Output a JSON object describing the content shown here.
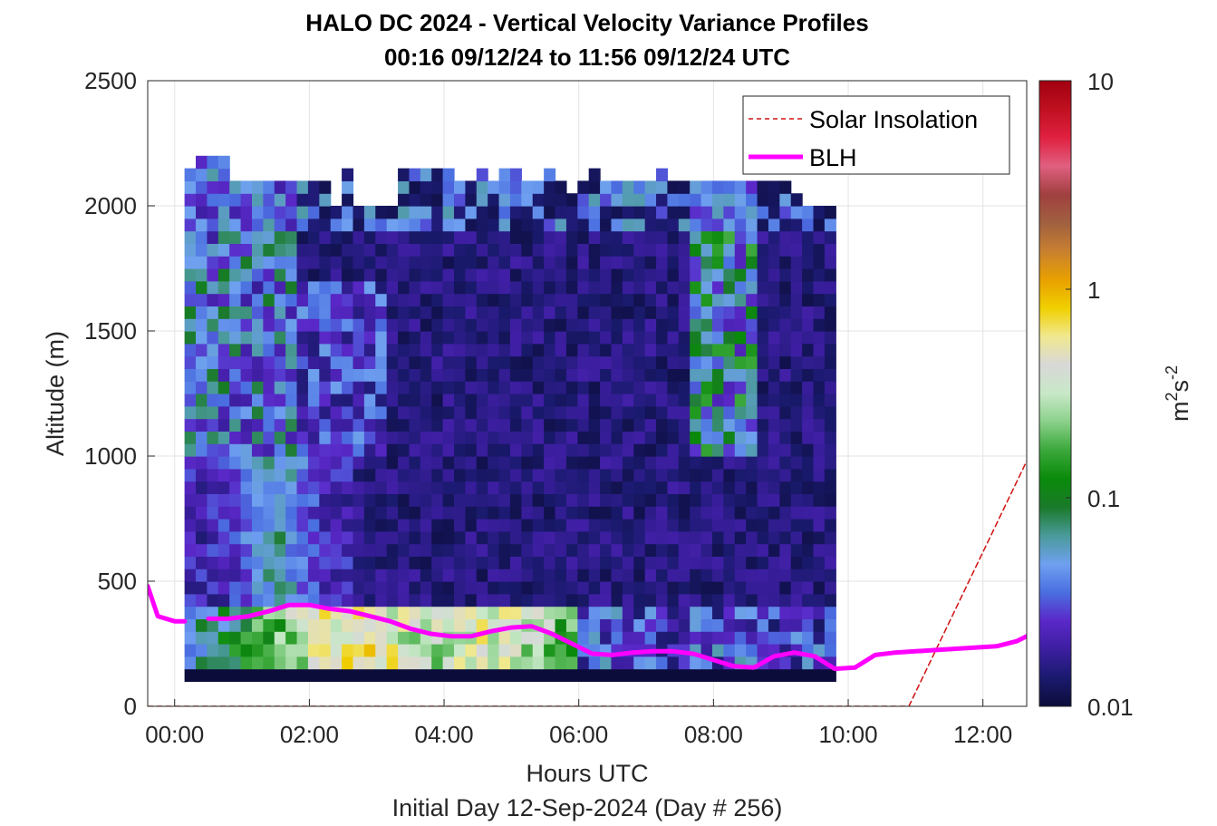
{
  "chart_data": {
    "type": "heatmap",
    "title": "HALO DC 2024 - Vertical Velocity Variance Profiles",
    "subtitle": "00:16 09/12/24 to 11:56 09/12/24  UTC",
    "xlabel": "Hours UTC",
    "footer": "Initial Day 12-Sep-2024 (Day # 256)",
    "ylabel": "Altitude (m)",
    "xlim": [
      -0.4,
      12.65
    ],
    "ylim": [
      0,
      2500
    ],
    "x_ticks": [
      0,
      2,
      4,
      6,
      8,
      10,
      12
    ],
    "x_tick_labels": [
      "00:00",
      "02:00",
      "04:00",
      "06:00",
      "08:00",
      "10:00",
      "12:00"
    ],
    "y_ticks": [
      0,
      500,
      1000,
      1500,
      2000,
      2500
    ],
    "y_tick_labels": [
      "0",
      "500",
      "1000",
      "1500",
      "2000",
      "2500"
    ],
    "grid": true,
    "legend_position": "top-right",
    "colorbar": {
      "scale": "log",
      "min": 0.01,
      "max": 10,
      "ticks": [
        0.01,
        0.1,
        1,
        10
      ],
      "tick_labels": [
        "0.01",
        "0.1",
        "1",
        "10"
      ],
      "label_base": "m",
      "label_exp1": "2",
      "label_mid": "s",
      "label_exp2": "-2",
      "colors": [
        "#0c0c3a",
        "#1a1a6e",
        "#3c1ea0",
        "#5a28c8",
        "#4a6ee0",
        "#6fa0f0",
        "#4a9a9a",
        "#1a7a2a",
        "#0a8a0a",
        "#3aa83a",
        "#8ad08a",
        "#c8e8c8",
        "#d8d8d8",
        "#f0e890",
        "#f0d000",
        "#e8a000",
        "#c88030",
        "#a06040",
        "#a04040",
        "#e06080",
        "#e02040",
        "#c01020",
        "#a00010"
      ]
    },
    "heatmap": {
      "x_start": 0.23,
      "x_step": 0.1667,
      "columns": 58,
      "y_start": 100,
      "y_step": 50,
      "rows": 43,
      "background_log10": -1.95,
      "top_altitudes_m": [
        2150,
        2200,
        2200,
        2200,
        2100,
        2100,
        2100,
        2100,
        2100,
        2100,
        2100,
        2100,
        2100,
        2000,
        2150,
        2000,
        2000,
        2000,
        2000,
        2150,
        2150,
        2150,
        2150,
        2150,
        2100,
        2100,
        2150,
        2100,
        2150,
        2150,
        2100,
        2100,
        2150,
        2100,
        2050,
        2100,
        2150,
        2100,
        2100,
        2100,
        2100,
        2100,
        2150,
        2100,
        2100,
        2100,
        2100,
        2100,
        2100,
        2100,
        2100,
        2100,
        2100,
        2100,
        2050,
        2000,
        2000,
        2000
      ]
    },
    "series": [
      {
        "name": "Solar Insolation",
        "color": "#d01010",
        "style": "dashed",
        "x": [
          -0.4,
          10.9,
          12.65
        ],
        "y": [
          0,
          0,
          980
        ]
      },
      {
        "name": "BLH",
        "color": "#ff00ff",
        "style": "solid",
        "segments": [
          {
            "x": [
              -0.4,
              -0.25,
              0.0,
              0.15
            ],
            "y": [
              480,
              360,
              340,
              340
            ]
          },
          {
            "x": [
              0.5,
              0.8,
              1.1,
              1.4,
              1.7,
              2.0,
              2.3,
              2.6,
              2.9,
              3.2,
              3.5,
              3.8,
              4.1,
              4.4,
              4.7,
              5.0,
              5.3,
              5.6,
              5.9,
              6.2,
              6.5,
              6.8,
              7.1,
              7.4,
              7.7,
              8.0,
              8.3,
              8.6,
              8.9,
              9.2,
              9.5,
              9.8,
              10.1,
              10.4,
              10.7,
              11.0,
              11.3,
              11.6,
              11.9,
              12.2,
              12.5,
              12.65
            ],
            "y": [
              350,
              350,
              360,
              380,
              405,
              405,
              390,
              380,
              360,
              340,
              310,
              290,
              280,
              280,
              300,
              315,
              320,
              290,
              250,
              210,
              205,
              215,
              220,
              220,
              210,
              185,
              160,
              155,
              200,
              215,
              200,
              150,
              155,
              205,
              215,
              220,
              225,
              230,
              235,
              240,
              260,
              280
            ]
          }
        ]
      }
    ]
  }
}
